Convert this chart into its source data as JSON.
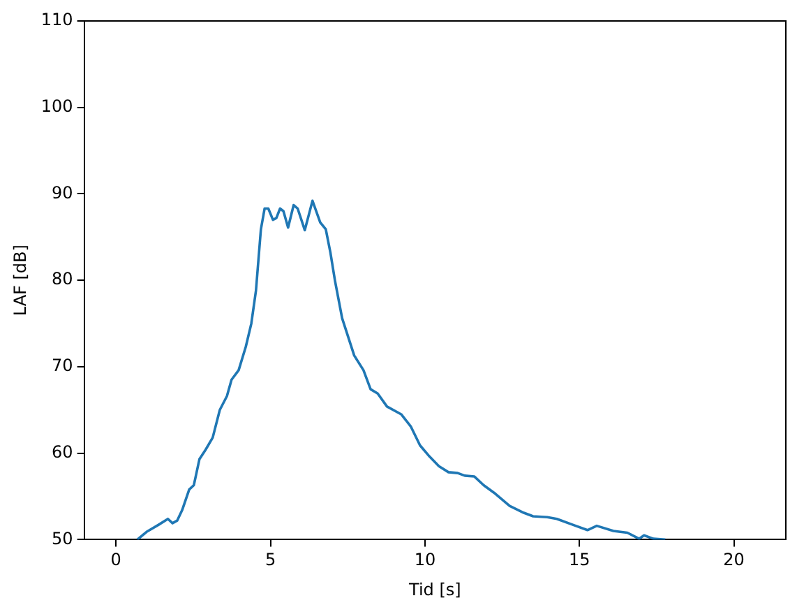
{
  "chart_data": {
    "type": "line",
    "xlabel": "Tid [s]",
    "ylabel": "LAF [dB]",
    "xlim": [
      -1.03,
      21.68
    ],
    "ylim": [
      50,
      110
    ],
    "xticks": [
      0,
      5,
      10,
      15,
      20
    ],
    "yticks": [
      50,
      60,
      70,
      80,
      90,
      100,
      110
    ],
    "grid": false,
    "legend": false,
    "marker": "none",
    "line_style": "solid",
    "series": [
      {
        "color": "#1f77b4",
        "x": [
          0.69,
          0.99,
          1.37,
          1.68,
          1.83,
          1.98,
          2.14,
          2.37,
          2.52,
          2.7,
          2.9,
          3.13,
          3.36,
          3.59,
          3.74,
          3.97,
          4.2,
          4.38,
          4.53,
          4.69,
          4.81,
          4.93,
          5.08,
          5.19,
          5.31,
          5.42,
          5.57,
          5.75,
          5.88,
          6.11,
          6.36,
          6.61,
          6.79,
          6.94,
          7.09,
          7.32,
          7.71,
          8.01,
          8.24,
          8.47,
          8.77,
          9.23,
          9.54,
          9.84,
          10.15,
          10.45,
          10.76,
          11.06,
          11.29,
          11.6,
          11.9,
          12.28,
          12.74,
          13.2,
          13.5,
          13.96,
          14.27,
          14.8,
          15.26,
          15.56,
          16.1,
          16.55,
          16.93,
          17.09,
          17.39,
          17.78
        ],
        "values": [
          50,
          50.9,
          51.7,
          52.4,
          51.9,
          52.2,
          53.4,
          55.8,
          56.3,
          59.3,
          60.4,
          61.8,
          65.0,
          66.6,
          68.5,
          69.6,
          72.3,
          75.0,
          78.8,
          85.9,
          88.3,
          88.3,
          87.0,
          87.2,
          88.3,
          88.0,
          86.1,
          88.7,
          88.3,
          85.8,
          89.2,
          86.7,
          85.9,
          83.2,
          79.9,
          75.6,
          71.3,
          69.6,
          67.4,
          66.9,
          65.4,
          64.5,
          63.1,
          60.9,
          59.6,
          58.5,
          57.8,
          57.7,
          57.4,
          57.3,
          56.3,
          55.3,
          53.9,
          53.1,
          52.7,
          52.6,
          52.4,
          51.7,
          51.1,
          51.6,
          51.0,
          50.8,
          50.1,
          50.5,
          50.1,
          50.0
        ]
      }
    ]
  }
}
